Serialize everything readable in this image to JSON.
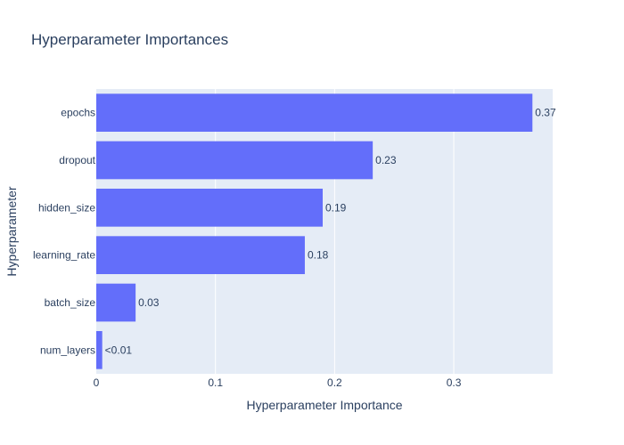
{
  "chart_data": {
    "type": "bar",
    "orientation": "horizontal",
    "title": "Hyperparameter Importances",
    "xlabel": "Hyperparameter Importance",
    "ylabel": "Hyperparameter",
    "xlim": [
      0,
      0.383
    ],
    "xticks": [
      0,
      0.1,
      0.2,
      0.3
    ],
    "xtick_labels": [
      "0",
      "0.1",
      "0.2",
      "0.3"
    ],
    "grid": true,
    "categories": [
      "epochs",
      "dropout",
      "hidden_size",
      "learning_rate",
      "batch_size",
      "num_layers"
    ],
    "values": [
      0.366,
      0.232,
      0.19,
      0.175,
      0.033,
      0.005
    ],
    "labels": [
      "0.37",
      "0.23",
      "0.19",
      "0.18",
      "0.03",
      "<0.01"
    ],
    "colors": {
      "bar": "#636efa",
      "plot_bg": "#e5ecf6",
      "grid": "#ffffff",
      "text": "#2a3f5f"
    }
  }
}
